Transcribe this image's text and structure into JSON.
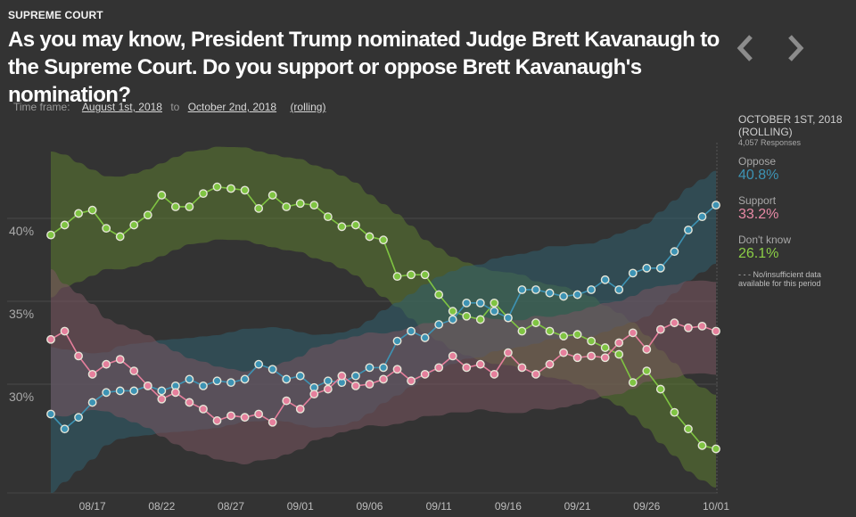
{
  "header": {
    "kicker": "SUPREME COURT",
    "title": "As you may know, President Trump nominated Judge Brett Kavanaugh to the Supreme Court. Do you support or oppose Brett Kavanaugh's nomination?",
    "prev_icon": "chevron-left-icon",
    "next_icon": "chevron-right-icon"
  },
  "timeframe": {
    "label": "Time frame:",
    "start": "August 1st, 2018",
    "to": "to",
    "end": "October 2nd, 2018",
    "mode": "(rolling)"
  },
  "sidebar": {
    "date": "OCTOBER 1ST, 2018",
    "mode": "(ROLLING)",
    "responses": "4,057 Responses",
    "items": [
      {
        "label": "Oppose",
        "value": "40.8%",
        "color": "#3d93b4"
      },
      {
        "label": "Support",
        "value": "33.2%",
        "color": "#e57f9c"
      },
      {
        "label": "Don't know",
        "value": "26.1%",
        "color": "#7fc442"
      }
    ],
    "note_dash": "- - -",
    "note": "No/insufficient data available for this period"
  },
  "chart_data": {
    "type": "line",
    "title": "",
    "xlabel": "",
    "ylabel": "",
    "ylim": [
      24,
      45
    ],
    "y_ticks": [
      30,
      35,
      40
    ],
    "y_tick_labels": [
      "30%",
      "35%",
      "40%"
    ],
    "x_tick_labels": [
      "08/17",
      "08/22",
      "08/27",
      "09/01",
      "09/06",
      "09/11",
      "09/16",
      "09/21",
      "09/26",
      "10/01"
    ],
    "x_tick_indices": [
      3,
      8,
      13,
      18,
      23,
      28,
      33,
      38,
      43,
      48
    ],
    "x": [
      "08/14",
      "08/15",
      "08/16",
      "08/17",
      "08/18",
      "08/19",
      "08/20",
      "08/21",
      "08/22",
      "08/23",
      "08/24",
      "08/25",
      "08/26",
      "08/27",
      "08/28",
      "08/29",
      "08/30",
      "08/31",
      "09/01",
      "09/02",
      "09/03",
      "09/04",
      "09/05",
      "09/06",
      "09/07",
      "09/08",
      "09/09",
      "09/10",
      "09/11",
      "09/12",
      "09/13",
      "09/14",
      "09/15",
      "09/16",
      "09/17",
      "09/18",
      "09/19",
      "09/20",
      "09/21",
      "09/22",
      "09/23",
      "09/24",
      "09/25",
      "09/26",
      "09/27",
      "09/28",
      "09/29",
      "09/30",
      "10/01"
    ],
    "grid": true,
    "confidence_band_pct": 2.8,
    "series": [
      {
        "name": "Don't know",
        "color": "#7fc442",
        "band_color": "#5b7a30",
        "values": [
          39.0,
          39.6,
          40.3,
          40.5,
          39.4,
          38.9,
          39.6,
          40.2,
          41.4,
          40.7,
          40.7,
          41.5,
          41.9,
          41.8,
          41.7,
          40.6,
          41.4,
          40.7,
          40.9,
          40.8,
          40.1,
          39.5,
          39.6,
          38.9,
          38.7,
          36.5,
          36.6,
          36.6,
          35.4,
          34.4,
          34.1,
          33.9,
          34.9,
          34.0,
          33.2,
          33.7,
          33.2,
          32.9,
          33.0,
          32.6,
          32.2,
          31.8,
          30.1,
          30.8,
          29.7,
          28.3,
          27.3,
          26.3,
          26.1
        ]
      },
      {
        "name": "Oppose",
        "color": "#3d93b4",
        "band_color": "#2f5e6e",
        "values": [
          28.2,
          27.3,
          28.0,
          28.9,
          29.5,
          29.6,
          29.6,
          29.9,
          29.6,
          29.9,
          30.3,
          29.9,
          30.2,
          30.1,
          30.3,
          31.2,
          30.9,
          30.3,
          30.5,
          29.8,
          30.2,
          30.1,
          30.5,
          31.0,
          31.0,
          32.6,
          33.2,
          32.8,
          33.6,
          33.9,
          34.9,
          34.9,
          34.4,
          34.0,
          35.7,
          35.7,
          35.5,
          35.3,
          35.4,
          35.7,
          36.3,
          35.7,
          36.7,
          37.0,
          37.0,
          38.0,
          39.3,
          40.1,
          40.8
        ]
      },
      {
        "name": "Support",
        "color": "#e57f9c",
        "band_color": "#7a5560",
        "values": [
          32.7,
          33.2,
          31.7,
          30.6,
          31.2,
          31.5,
          30.8,
          29.9,
          29.1,
          29.5,
          28.9,
          28.5,
          27.8,
          28.1,
          28.0,
          28.2,
          27.7,
          29.0,
          28.5,
          29.4,
          29.7,
          30.5,
          29.9,
          30.0,
          30.3,
          30.9,
          30.2,
          30.6,
          31.0,
          31.7,
          31.0,
          31.2,
          30.6,
          31.9,
          31.0,
          30.6,
          31.2,
          31.9,
          31.6,
          31.7,
          31.6,
          32.5,
          33.1,
          32.1,
          33.3,
          33.7,
          33.4,
          33.5,
          33.2
        ]
      }
    ]
  }
}
